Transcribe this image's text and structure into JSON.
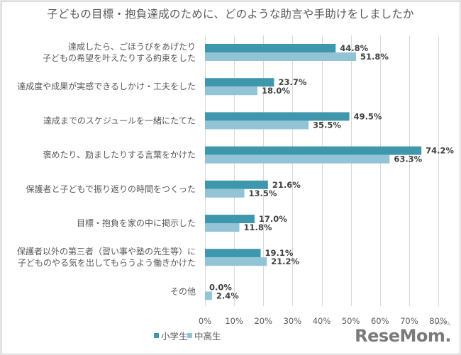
{
  "chart_data": {
    "type": "bar",
    "orientation": "horizontal",
    "title": "子どもの目標・抱負達成のために、どのような助言や手助けをしましたか",
    "categories": [
      [
        "達成したら、ごほうびをあげたり",
        "子どもの希望を叶えたりする約束をした"
      ],
      [
        "達成度や成果が実感できるしかけ・工夫をした"
      ],
      [
        "達成までのスケジュールを一緒にたてた"
      ],
      [
        "褒めたり、励ましたりする言葉をかけた"
      ],
      [
        "保護者と子どもで振り返りの時間をつくった"
      ],
      [
        "目標・抱負を家の中に掲示した"
      ],
      [
        "保護者以外の第三者（習い事や塾の先生等）に",
        "子どものやる気を出してもらうよう働きかけた"
      ],
      [
        "その他"
      ]
    ],
    "series": [
      {
        "name": "小学生",
        "color": "#3f97ad",
        "values": [
          44.8,
          23.7,
          49.5,
          74.2,
          21.6,
          17.0,
          19.1,
          0.0
        ]
      },
      {
        "name": "中高生",
        "color": "#92c4d6",
        "values": [
          51.8,
          18.0,
          35.5,
          63.3,
          13.5,
          11.8,
          21.2,
          2.4
        ]
      }
    ],
    "value_format": "{v}%",
    "xlabel": "",
    "ylabel": "",
    "xlim": [
      0,
      80
    ],
    "xticks": [
      0,
      10,
      20,
      30,
      40,
      50,
      60,
      70,
      80
    ],
    "xtick_labels": [
      "0%",
      "10%",
      "20%",
      "30%",
      "40%",
      "50%",
      "60%",
      "70%",
      "80%"
    ],
    "grid": "vertical",
    "legend": "bottom-left"
  },
  "watermark": "ReseMom",
  "watermark_ruby": "リセマム"
}
